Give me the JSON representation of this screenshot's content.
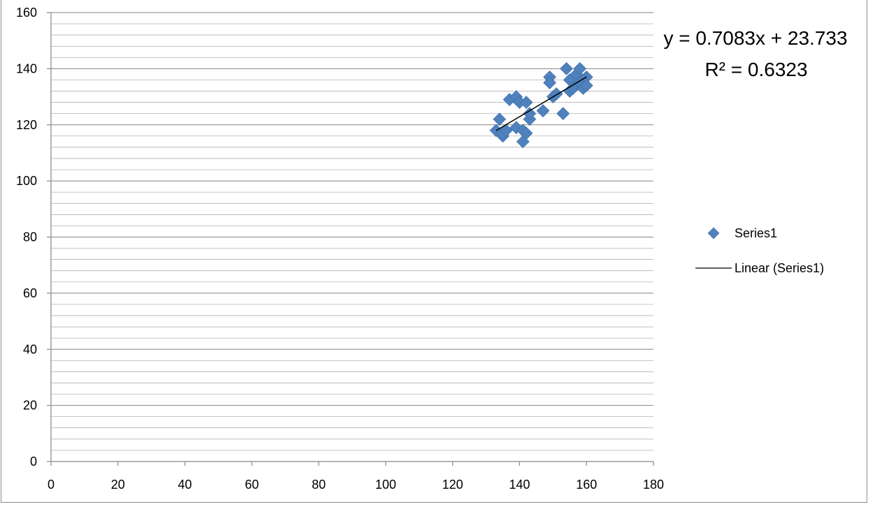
{
  "chart_data": {
    "type": "scatter",
    "title": "",
    "xlabel": "",
    "ylabel": "",
    "xlim": [
      0,
      180
    ],
    "ylim": [
      0,
      160
    ],
    "x_ticks": [
      0,
      20,
      40,
      60,
      80,
      100,
      120,
      140,
      160,
      180
    ],
    "y_ticks": [
      0,
      20,
      40,
      60,
      80,
      100,
      120,
      140,
      160
    ],
    "grid": "horizontal major and minor",
    "legend_position": "right",
    "series": [
      {
        "name": "Series1",
        "marker": "diamond",
        "color": "#4f81bd",
        "points": [
          [
            133,
            118
          ],
          [
            134,
            122
          ],
          [
            135,
            116
          ],
          [
            135,
            117
          ],
          [
            136,
            118
          ],
          [
            137,
            129
          ],
          [
            139,
            130
          ],
          [
            139,
            119
          ],
          [
            140,
            128
          ],
          [
            141,
            114
          ],
          [
            141,
            118
          ],
          [
            142,
            117
          ],
          [
            142,
            128
          ],
          [
            143,
            122
          ],
          [
            143,
            124
          ],
          [
            147,
            125
          ],
          [
            149,
            137
          ],
          [
            149,
            135
          ],
          [
            150,
            130
          ],
          [
            151,
            131
          ],
          [
            153,
            124
          ],
          [
            154,
            140
          ],
          [
            155,
            132
          ],
          [
            155,
            136
          ],
          [
            156,
            133
          ],
          [
            157,
            138
          ],
          [
            158,
            140
          ],
          [
            158,
            135
          ],
          [
            159,
            133
          ],
          [
            160,
            137
          ],
          [
            160,
            134
          ]
        ]
      }
    ],
    "trendline": {
      "name": "Linear (Series1)",
      "type": "linear",
      "slope": 0.7083,
      "intercept": 23.733,
      "x_range": [
        133,
        160
      ],
      "color": "#000000",
      "equation_text": "y = 0.7083x + 23.733",
      "r2_text": "R² = 0.6323"
    }
  }
}
